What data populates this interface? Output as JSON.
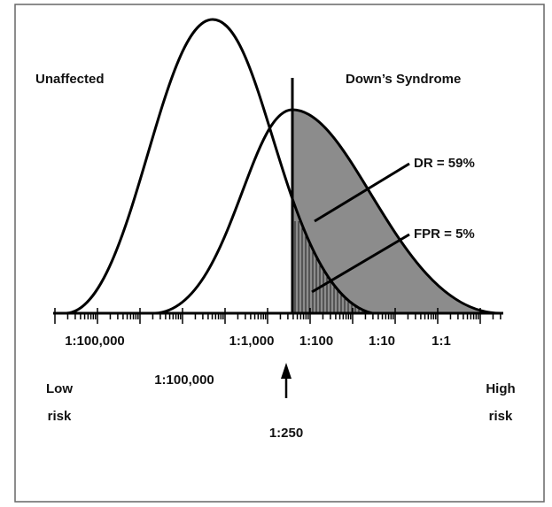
{
  "labels": {
    "unaffected": "Unaffected",
    "downs": "Down’s Syndrome",
    "dr": "DR = 59%",
    "fpr": "FPR = 5%"
  },
  "axis": {
    "ticks": [
      "1:100,000",
      "1:1,000",
      "1:100",
      "1:10",
      "1:1"
    ],
    "lower_label": "1:100,000"
  },
  "risk": {
    "low": [
      "Low",
      "risk"
    ],
    "high": [
      "High",
      "risk"
    ],
    "cutoff": "1:250"
  }
}
